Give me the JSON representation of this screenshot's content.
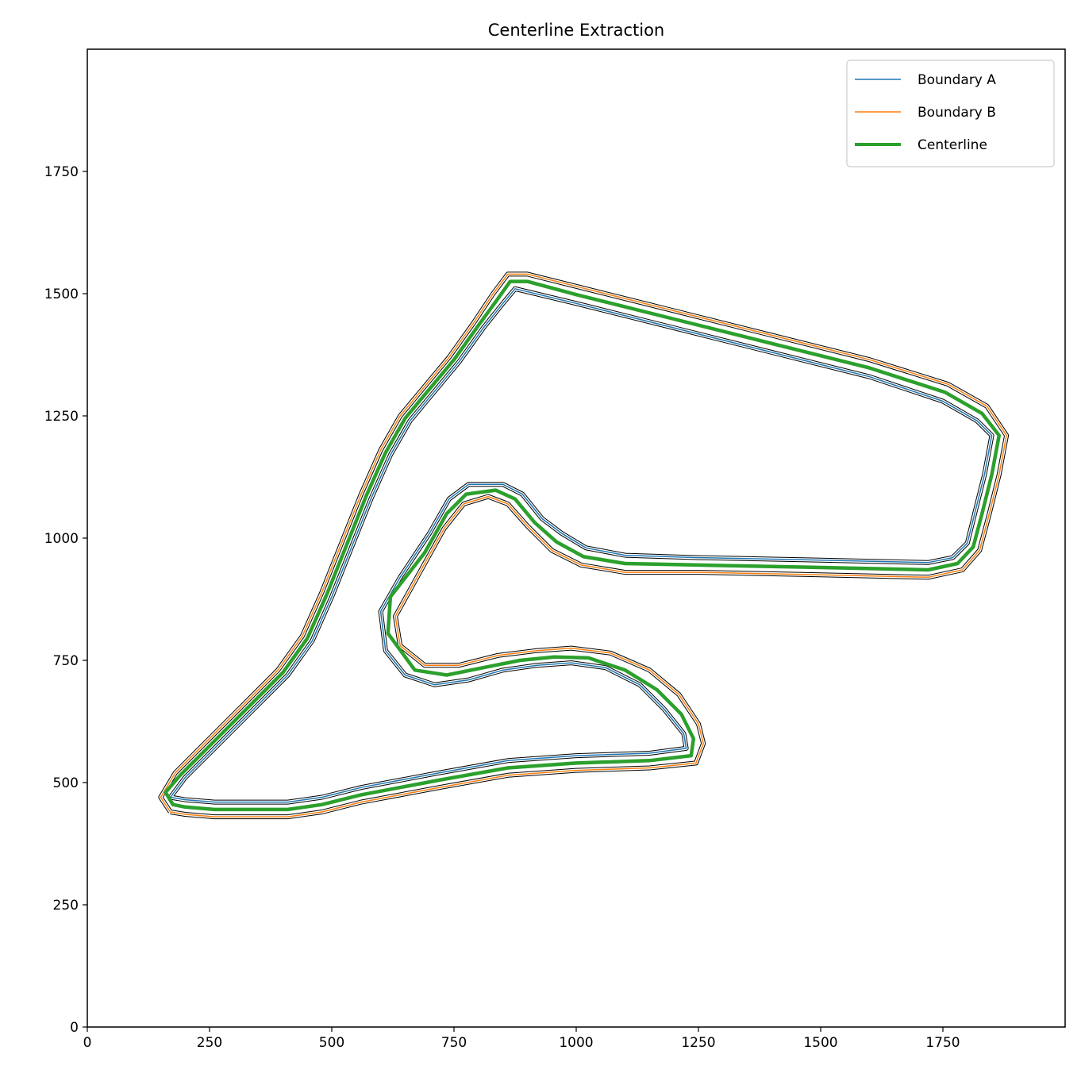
{
  "chart_data": {
    "type": "line",
    "title": "Centerline Extraction",
    "xlabel": "",
    "ylabel": "",
    "xlim": [
      0,
      2000
    ],
    "ylim": [
      0,
      2000
    ],
    "x_ticks": [
      0,
      250,
      500,
      750,
      1000,
      1250,
      1500,
      1750
    ],
    "y_ticks": [
      0,
      250,
      500,
      750,
      1000,
      1250,
      1500,
      1750
    ],
    "grid": false,
    "legend_position": "top-right",
    "series": [
      {
        "name": "Boundary A",
        "color": "#1f77b4",
        "points": [
          [
            170,
            470
          ],
          [
            200,
            510
          ],
          [
            260,
            570
          ],
          [
            330,
            640
          ],
          [
            410,
            720
          ],
          [
            460,
            790
          ],
          [
            500,
            880
          ],
          [
            540,
            980
          ],
          [
            580,
            1080
          ],
          [
            620,
            1170
          ],
          [
            660,
            1240
          ],
          [
            710,
            1300
          ],
          [
            760,
            1360
          ],
          [
            810,
            1430
          ],
          [
            850,
            1480
          ],
          [
            875,
            1510
          ],
          [
            1000,
            1480
          ],
          [
            1200,
            1430
          ],
          [
            1400,
            1380
          ],
          [
            1600,
            1330
          ],
          [
            1750,
            1280
          ],
          [
            1820,
            1240
          ],
          [
            1850,
            1210
          ],
          [
            1835,
            1130
          ],
          [
            1815,
            1050
          ],
          [
            1800,
            990
          ],
          [
            1770,
            960
          ],
          [
            1720,
            950
          ],
          [
            1500,
            955
          ],
          [
            1250,
            960
          ],
          [
            1100,
            965
          ],
          [
            1020,
            980
          ],
          [
            970,
            1010
          ],
          [
            930,
            1040
          ],
          [
            890,
            1090
          ],
          [
            850,
            1110
          ],
          [
            780,
            1110
          ],
          [
            740,
            1080
          ],
          [
            700,
            1010
          ],
          [
            640,
            920
          ],
          [
            600,
            850
          ],
          [
            610,
            770
          ],
          [
            650,
            720
          ],
          [
            710,
            700
          ],
          [
            780,
            710
          ],
          [
            850,
            730
          ],
          [
            920,
            740
          ],
          [
            990,
            745
          ],
          [
            1060,
            735
          ],
          [
            1130,
            700
          ],
          [
            1180,
            650
          ],
          [
            1220,
            600
          ],
          [
            1225,
            570
          ],
          [
            1150,
            560
          ],
          [
            1000,
            555
          ],
          [
            860,
            545
          ],
          [
            720,
            520
          ],
          [
            560,
            490
          ],
          [
            480,
            470
          ],
          [
            410,
            460
          ],
          [
            340,
            460
          ],
          [
            260,
            460
          ],
          [
            200,
            465
          ],
          [
            170,
            470
          ]
        ]
      },
      {
        "name": "Boundary B",
        "color": "#ff7f0e",
        "points": [
          [
            170,
            440
          ],
          [
            150,
            470
          ],
          [
            180,
            520
          ],
          [
            240,
            580
          ],
          [
            310,
            650
          ],
          [
            390,
            730
          ],
          [
            440,
            800
          ],
          [
            480,
            890
          ],
          [
            520,
            990
          ],
          [
            560,
            1090
          ],
          [
            600,
            1180
          ],
          [
            640,
            1250
          ],
          [
            690,
            1310
          ],
          [
            740,
            1370
          ],
          [
            790,
            1440
          ],
          [
            830,
            1500
          ],
          [
            860,
            1540
          ],
          [
            900,
            1540
          ],
          [
            1000,
            1515
          ],
          [
            1200,
            1465
          ],
          [
            1400,
            1415
          ],
          [
            1600,
            1365
          ],
          [
            1760,
            1315
          ],
          [
            1840,
            1270
          ],
          [
            1880,
            1210
          ],
          [
            1865,
            1130
          ],
          [
            1845,
            1050
          ],
          [
            1825,
            975
          ],
          [
            1790,
            935
          ],
          [
            1720,
            920
          ],
          [
            1500,
            925
          ],
          [
            1250,
            930
          ],
          [
            1100,
            930
          ],
          [
            1010,
            945
          ],
          [
            950,
            975
          ],
          [
            900,
            1025
          ],
          [
            860,
            1070
          ],
          [
            820,
            1085
          ],
          [
            770,
            1070
          ],
          [
            730,
            1020
          ],
          [
            680,
            930
          ],
          [
            630,
            840
          ],
          [
            640,
            780
          ],
          [
            690,
            740
          ],
          [
            760,
            740
          ],
          [
            840,
            760
          ],
          [
            920,
            770
          ],
          [
            990,
            775
          ],
          [
            1070,
            765
          ],
          [
            1150,
            730
          ],
          [
            1210,
            680
          ],
          [
            1250,
            620
          ],
          [
            1260,
            580
          ],
          [
            1245,
            540
          ],
          [
            1150,
            530
          ],
          [
            1000,
            525
          ],
          [
            860,
            515
          ],
          [
            720,
            490
          ],
          [
            560,
            460
          ],
          [
            480,
            440
          ],
          [
            410,
            430
          ],
          [
            340,
            430
          ],
          [
            260,
            430
          ],
          [
            200,
            435
          ],
          [
            170,
            440
          ]
        ]
      },
      {
        "name": "Centerline",
        "color": "#2ca02c",
        "points": [
          [
            175,
            455
          ],
          [
            160,
            480
          ],
          [
            190,
            515
          ],
          [
            250,
            575
          ],
          [
            320,
            645
          ],
          [
            400,
            725
          ],
          [
            450,
            795
          ],
          [
            490,
            885
          ],
          [
            530,
            985
          ],
          [
            570,
            1085
          ],
          [
            610,
            1175
          ],
          [
            650,
            1245
          ],
          [
            700,
            1305
          ],
          [
            750,
            1365
          ],
          [
            800,
            1435
          ],
          [
            840,
            1490
          ],
          [
            865,
            1525
          ],
          [
            900,
            1525
          ],
          [
            1000,
            1498
          ],
          [
            1200,
            1448
          ],
          [
            1400,
            1398
          ],
          [
            1600,
            1348
          ],
          [
            1755,
            1298
          ],
          [
            1830,
            1255
          ],
          [
            1865,
            1210
          ],
          [
            1850,
            1130
          ],
          [
            1830,
            1050
          ],
          [
            1812,
            982
          ],
          [
            1780,
            948
          ],
          [
            1720,
            935
          ],
          [
            1500,
            940
          ],
          [
            1250,
            945
          ],
          [
            1100,
            948
          ],
          [
            1015,
            962
          ],
          [
            960,
            992
          ],
          [
            915,
            1032
          ],
          [
            875,
            1080
          ],
          [
            835,
            1098
          ],
          [
            775,
            1090
          ],
          [
            735,
            1050
          ],
          [
            690,
            970
          ],
          [
            620,
            880
          ],
          [
            615,
            805
          ],
          [
            670,
            730
          ],
          [
            735,
            720
          ],
          [
            810,
            735
          ],
          [
            885,
            750
          ],
          [
            955,
            757
          ],
          [
            1025,
            755
          ],
          [
            1100,
            730
          ],
          [
            1165,
            690
          ],
          [
            1215,
            640
          ],
          [
            1240,
            590
          ],
          [
            1235,
            555
          ],
          [
            1150,
            545
          ],
          [
            1000,
            540
          ],
          [
            860,
            530
          ],
          [
            720,
            505
          ],
          [
            560,
            475
          ],
          [
            480,
            455
          ],
          [
            410,
            445
          ],
          [
            340,
            445
          ],
          [
            260,
            445
          ],
          [
            200,
            450
          ],
          [
            175,
            455
          ]
        ]
      }
    ]
  }
}
